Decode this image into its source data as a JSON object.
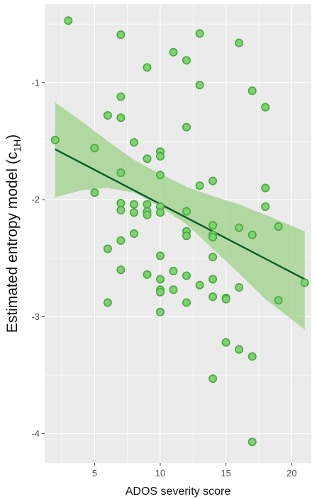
{
  "chart_data": {
    "type": "scatter",
    "title": "",
    "xlabel": "ADOS severity score",
    "ylabel": "Estimated entropy model (c",
    "ylabel_subscript": "1H",
    "ylabel_close": ")",
    "xlim": [
      1.2,
      21.5
    ],
    "ylim": [
      -4.25,
      -0.33
    ],
    "xticks": [
      5,
      10,
      15,
      20
    ],
    "yticks": [
      -1,
      -2,
      -3,
      -4
    ],
    "xtick_labels": [
      "5",
      "10",
      "15",
      "20"
    ],
    "ytick_labels": [
      "-1",
      "-2",
      "-3",
      "-4"
    ],
    "grid": true,
    "legend": "none",
    "colors": {
      "panel": "#ebebeb",
      "grid": "#ffffff",
      "point_fill": "#7dd36d",
      "point_stroke": "#4aa642",
      "line": "#0b5a28",
      "ribbon": "#9fd28a"
    },
    "points": [
      {
        "x": 2,
        "y": -1.49
      },
      {
        "x": 3,
        "y": -0.47
      },
      {
        "x": 5,
        "y": -1.56
      },
      {
        "x": 5,
        "y": -1.94
      },
      {
        "x": 6,
        "y": -1.28
      },
      {
        "x": 6,
        "y": -2.42
      },
      {
        "x": 6,
        "y": -2.88
      },
      {
        "x": 7,
        "y": -0.59
      },
      {
        "x": 7,
        "y": -1.12
      },
      {
        "x": 7,
        "y": -1.3
      },
      {
        "x": 7,
        "y": -1.77
      },
      {
        "x": 7,
        "y": -2.03
      },
      {
        "x": 7,
        "y": -2.09
      },
      {
        "x": 7,
        "y": -2.35
      },
      {
        "x": 7,
        "y": -2.6
      },
      {
        "x": 8,
        "y": -1.51
      },
      {
        "x": 8,
        "y": -2.04
      },
      {
        "x": 8,
        "y": -2.11
      },
      {
        "x": 8,
        "y": -2.29
      },
      {
        "x": 9,
        "y": -0.87
      },
      {
        "x": 9,
        "y": -1.65
      },
      {
        "x": 9,
        "y": -2.04
      },
      {
        "x": 9,
        "y": -2.1
      },
      {
        "x": 9,
        "y": -2.13
      },
      {
        "x": 9,
        "y": -2.64
      },
      {
        "x": 10,
        "y": -1.59
      },
      {
        "x": 10,
        "y": -1.63
      },
      {
        "x": 10,
        "y": -1.79
      },
      {
        "x": 10,
        "y": -2.06
      },
      {
        "x": 10,
        "y": -2.11
      },
      {
        "x": 10,
        "y": -2.48
      },
      {
        "x": 10,
        "y": -2.68
      },
      {
        "x": 10,
        "y": -2.77
      },
      {
        "x": 10,
        "y": -2.79
      },
      {
        "x": 10,
        "y": -2.96
      },
      {
        "x": 11,
        "y": -0.74
      },
      {
        "x": 11,
        "y": -2.61
      },
      {
        "x": 11,
        "y": -2.77
      },
      {
        "x": 12,
        "y": -0.81
      },
      {
        "x": 12,
        "y": -1.38
      },
      {
        "x": 12,
        "y": -2.1
      },
      {
        "x": 12,
        "y": -2.27
      },
      {
        "x": 12,
        "y": -2.31
      },
      {
        "x": 12,
        "y": -2.65
      },
      {
        "x": 12,
        "y": -2.88
      },
      {
        "x": 13,
        "y": -0.58
      },
      {
        "x": 13,
        "y": -1.02
      },
      {
        "x": 13,
        "y": -1.88
      },
      {
        "x": 13,
        "y": -2.73
      },
      {
        "x": 14,
        "y": -1.84
      },
      {
        "x": 14,
        "y": -2.22
      },
      {
        "x": 14,
        "y": -2.3
      },
      {
        "x": 14,
        "y": -2.32
      },
      {
        "x": 14,
        "y": -2.49
      },
      {
        "x": 14,
        "y": -2.68
      },
      {
        "x": 14,
        "y": -2.83
      },
      {
        "x": 14,
        "y": -3.53
      },
      {
        "x": 15,
        "y": -2.84
      },
      {
        "x": 15,
        "y": -2.85
      },
      {
        "x": 15,
        "y": -3.22
      },
      {
        "x": 16,
        "y": -0.66
      },
      {
        "x": 16,
        "y": -2.24
      },
      {
        "x": 16,
        "y": -2.75
      },
      {
        "x": 16,
        "y": -3.28
      },
      {
        "x": 17,
        "y": -1.07
      },
      {
        "x": 17,
        "y": -2.3
      },
      {
        "x": 17,
        "y": -3.34
      },
      {
        "x": 17,
        "y": -4.07
      },
      {
        "x": 18,
        "y": -1.21
      },
      {
        "x": 18,
        "y": -1.9
      },
      {
        "x": 18,
        "y": -2.06
      },
      {
        "x": 19,
        "y": -2.23
      },
      {
        "x": 19,
        "y": -2.86
      },
      {
        "x": 21,
        "y": -2.71
      }
    ],
    "fit_line": {
      "x": [
        2,
        21
      ],
      "y": [
        -1.57,
        -2.68
      ]
    },
    "confidence_band": [
      {
        "x": 2,
        "lower": -1.98,
        "upper": -1.17
      },
      {
        "x": 4,
        "lower": -1.92,
        "upper": -1.33
      },
      {
        "x": 6,
        "lower": -1.9,
        "upper": -1.5
      },
      {
        "x": 8,
        "lower": -1.94,
        "upper": -1.66
      },
      {
        "x": 10,
        "lower": -2.06,
        "upper": -1.78
      },
      {
        "x": 12,
        "lower": -2.21,
        "upper": -1.89
      },
      {
        "x": 14,
        "lower": -2.42,
        "upper": -1.97
      },
      {
        "x": 16,
        "lower": -2.63,
        "upper": -2.04
      },
      {
        "x": 18,
        "lower": -2.85,
        "upper": -2.13
      },
      {
        "x": 21,
        "lower": -3.11,
        "upper": -2.27
      }
    ]
  }
}
